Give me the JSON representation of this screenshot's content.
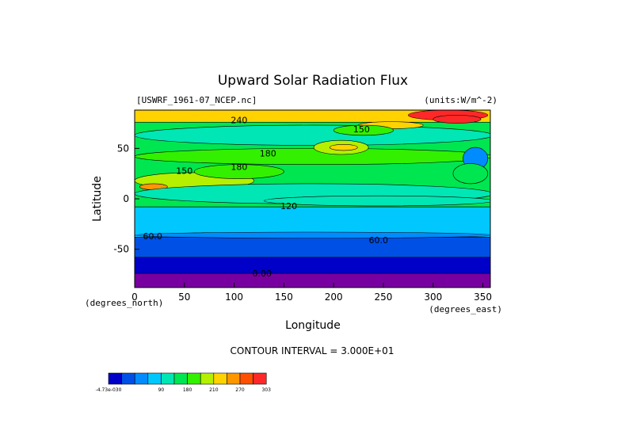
{
  "chart_data": {
    "type": "heatmap",
    "title": "Upward Solar Radiation Flux",
    "dataset": "[USWRF_1961-07_NCEP.nc]",
    "units": "(units:W/m^-2)",
    "xlabel": "Longitude",
    "xunit": "(degrees_east)",
    "ylabel": "Latitude",
    "yunit": "(degrees_north)",
    "xlim": [
      0,
      357.5
    ],
    "ylim": [
      -88,
      88
    ],
    "xticks": [
      0,
      50,
      100,
      150,
      200,
      250,
      300,
      350
    ],
    "yticks": [
      50,
      0,
      -50
    ],
    "contour_interval_text": "CONTOUR INTERVAL = 3.000E+01",
    "contour_labels": [
      {
        "text": "240",
        "lon": 105,
        "lat": 78
      },
      {
        "text": "150",
        "lon": 228,
        "lat": 69
      },
      {
        "text": "180",
        "lon": 134,
        "lat": 45
      },
      {
        "text": "180",
        "lon": 105,
        "lat": 32
      },
      {
        "text": "150",
        "lon": 50,
        "lat": 28
      },
      {
        "text": "120",
        "lon": 155,
        "lat": -7
      },
      {
        "text": "60.0",
        "lon": 18,
        "lat": -37
      },
      {
        "text": "60.0",
        "lon": 245,
        "lat": -41
      },
      {
        "text": "0.00",
        "lon": 128,
        "lat": -74
      }
    ],
    "zonal_bands": [
      {
        "lat_min": 76,
        "lat_max": 88,
        "value": 240
      },
      {
        "lat_min": -8,
        "lat_max": 76,
        "value": 150
      },
      {
        "lat_min": -38,
        "lat_max": -8,
        "value": 90
      },
      {
        "lat_min": -58,
        "lat_max": -38,
        "value": 30
      },
      {
        "lat_min": -74,
        "lat_max": -58,
        "value": 0
      },
      {
        "lat_min": -88,
        "lat_max": -74,
        "value": -47
      }
    ],
    "features": [
      {
        "lon": 0,
        "w": 360,
        "lat": 63,
        "h": 20,
        "value": 120
      },
      {
        "lon": 0,
        "w": 360,
        "lat": 42,
        "h": 16,
        "value": 180
      },
      {
        "lon": 0,
        "w": 120,
        "lat": 18,
        "h": 16,
        "value": 210
      },
      {
        "lon": 60,
        "w": 90,
        "lat": 27,
        "h": 14,
        "value": 180
      },
      {
        "lon": 5,
        "w": 28,
        "lat": 12,
        "h": 6,
        "value": 270
      },
      {
        "lon": 180,
        "w": 55,
        "lat": 51,
        "h": 14,
        "value": 210
      },
      {
        "lon": 196,
        "w": 28,
        "lat": 51,
        "h": 6,
        "value": 240
      },
      {
        "lon": 275,
        "w": 80,
        "lat": 83,
        "h": 10,
        "value": 303
      },
      {
        "lon": 300,
        "w": 48,
        "lat": 79,
        "h": 8,
        "value": 303
      },
      {
        "lon": 225,
        "w": 65,
        "lat": 73,
        "h": 7,
        "value": 240
      },
      {
        "lon": 330,
        "w": 25,
        "lat": 40,
        "h": 22,
        "value": 60
      },
      {
        "lon": 0,
        "w": 360,
        "lat": 5,
        "h": 20,
        "value": 120
      },
      {
        "lon": 130,
        "w": 230,
        "lat": -2,
        "h": 10,
        "value": 120
      },
      {
        "lon": 200,
        "w": 60,
        "lat": 68,
        "h": 10,
        "value": 180
      },
      {
        "lon": 320,
        "w": 35,
        "lat": 25,
        "h": 20,
        "value": 150
      },
      {
        "lon": 0,
        "w": 360,
        "lat": -36,
        "h": 6,
        "value": 60
      }
    ],
    "colorbar": {
      "colors": [
        "#0000c8",
        "#0050e6",
        "#008cff",
        "#00c8ff",
        "#00e6b4",
        "#00e650",
        "#32f000",
        "#b4f000",
        "#ffd200",
        "#ff9600",
        "#ff5000",
        "#ff2828"
      ],
      "labels": [
        {
          "text": "-4.73e-030",
          "index": 0
        },
        {
          "text": "90",
          "index": 4
        },
        {
          "text": "180",
          "index": 6
        },
        {
          "text": "210",
          "index": 8
        },
        {
          "text": "270",
          "index": 10
        },
        {
          "text": "303",
          "index": 12
        }
      ]
    }
  }
}
